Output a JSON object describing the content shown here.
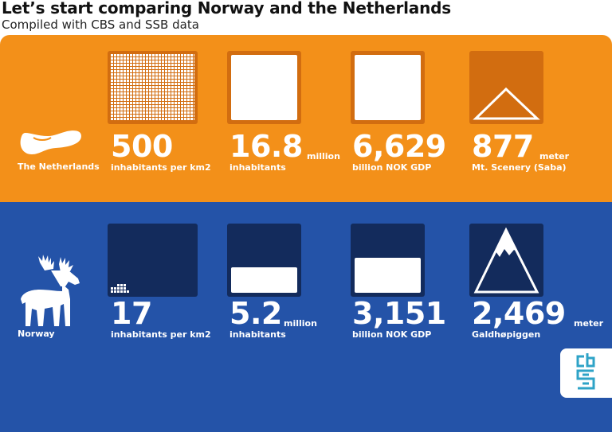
{
  "header": {
    "title": "Let’s start comparing Norway and the Netherlands",
    "subtitle": "Compiled with CBS and SSB data"
  },
  "netherlands": {
    "name": "The Netherlands",
    "icon": "wooden-clog-icon",
    "color": "#f39019",
    "stats": {
      "density": {
        "value": "500",
        "label": "inhabitants per km2"
      },
      "population": {
        "value": "16.8",
        "unit": "million",
        "label": "inhabitants",
        "fill_fraction": 1.0
      },
      "gdp": {
        "value": "6,629",
        "label": "billion NOK GDP",
        "fill_fraction": 1.0
      },
      "peak": {
        "value": "877",
        "unit": "meter",
        "label": "Mt. Scenery (Saba)"
      }
    }
  },
  "norway": {
    "name": "Norway",
    "icon": "moose-icon",
    "color": "#2453a8",
    "stats": {
      "density": {
        "value": "17",
        "label": "inhabitants per km2"
      },
      "population": {
        "value": "5.2",
        "unit": "million",
        "label": "inhabitants",
        "fill_fraction": 0.31
      },
      "gdp": {
        "value": "3,151",
        "label": "billion NOK GDP",
        "fill_fraction": 0.48
      },
      "peak": {
        "value": "2,469",
        "unit": "meter",
        "label": "Galdhøpiggen"
      }
    }
  },
  "logo": {
    "icon": "cbs-logo-icon"
  }
}
